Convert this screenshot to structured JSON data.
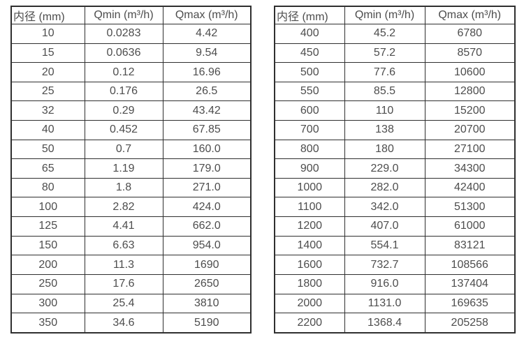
{
  "colors": {
    "background": "#ffffff",
    "border": "#2f2f2f",
    "text": "#4d4d4d"
  },
  "tables": {
    "left": {
      "headers": [
        "内径 (mm)",
        "Qmin (m³/h)",
        "Qmax (m³/h)"
      ],
      "rows": [
        [
          "10",
          "0.0283",
          "4.42"
        ],
        [
          "15",
          "0.0636",
          "9.54"
        ],
        [
          "20",
          "0.12",
          "16.96"
        ],
        [
          "25",
          "0.176",
          "26.5"
        ],
        [
          "32",
          "0.29",
          "43.42"
        ],
        [
          "40",
          "0.452",
          "67.85"
        ],
        [
          "50",
          "0.7",
          "160.0"
        ],
        [
          "65",
          "1.19",
          "179.0"
        ],
        [
          "80",
          "1.8",
          "271.0"
        ],
        [
          "100",
          "2.82",
          "424.0"
        ],
        [
          "125",
          "4.41",
          "662.0"
        ],
        [
          "150",
          "6.63",
          "954.0"
        ],
        [
          "200",
          "11.3",
          "1690"
        ],
        [
          "250",
          "17.6",
          "2650"
        ],
        [
          "300",
          "25.4",
          "3810"
        ],
        [
          "350",
          "34.6",
          "5190"
        ]
      ]
    },
    "right": {
      "headers": [
        "内径 (mm)",
        "Qmin (m³/h)",
        "Qmax (m³/h)"
      ],
      "rows": [
        [
          "400",
          "45.2",
          "6780"
        ],
        [
          "450",
          "57.2",
          "8570"
        ],
        [
          "500",
          "77.6",
          "10600"
        ],
        [
          "550",
          "85.5",
          "12800"
        ],
        [
          "600",
          "110",
          "15200"
        ],
        [
          "700",
          "138",
          "20700"
        ],
        [
          "800",
          "180",
          "27100"
        ],
        [
          "900",
          "229.0",
          "34300"
        ],
        [
          "1000",
          "282.0",
          "42400"
        ],
        [
          "1100",
          "342.0",
          "51300"
        ],
        [
          "1200",
          "407.0",
          "61000"
        ],
        [
          "1400",
          "554.1",
          "83121"
        ],
        [
          "1600",
          "732.7",
          "108566"
        ],
        [
          "1800",
          "916.0",
          "137404"
        ],
        [
          "2000",
          "1131.0",
          "169635"
        ],
        [
          "2200",
          "1368.4",
          "205258"
        ]
      ]
    }
  },
  "chart_data": [
    {
      "type": "table",
      "title": "",
      "columns": [
        "内径 (mm)",
        "Qmin (m³/h)",
        "Qmax (m³/h)"
      ],
      "rows": [
        [
          10,
          0.0283,
          4.42
        ],
        [
          15,
          0.0636,
          9.54
        ],
        [
          20,
          0.12,
          16.96
        ],
        [
          25,
          0.176,
          26.5
        ],
        [
          32,
          0.29,
          43.42
        ],
        [
          40,
          0.452,
          67.85
        ],
        [
          50,
          0.7,
          160.0
        ],
        [
          65,
          1.19,
          179.0
        ],
        [
          80,
          1.8,
          271.0
        ],
        [
          100,
          2.82,
          424.0
        ],
        [
          125,
          4.41,
          662.0
        ],
        [
          150,
          6.63,
          954.0
        ],
        [
          200,
          11.3,
          1690
        ],
        [
          250,
          17.6,
          2650
        ],
        [
          300,
          25.4,
          3810
        ],
        [
          350,
          34.6,
          5190
        ]
      ]
    },
    {
      "type": "table",
      "title": "",
      "columns": [
        "内径 (mm)",
        "Qmin (m³/h)",
        "Qmax (m³/h)"
      ],
      "rows": [
        [
          400,
          45.2,
          6780
        ],
        [
          450,
          57.2,
          8570
        ],
        [
          500,
          77.6,
          10600
        ],
        [
          550,
          85.5,
          12800
        ],
        [
          600,
          110,
          15200
        ],
        [
          700,
          138,
          20700
        ],
        [
          800,
          180,
          27100
        ],
        [
          900,
          229.0,
          34300
        ],
        [
          1000,
          282.0,
          42400
        ],
        [
          1100,
          342.0,
          51300
        ],
        [
          1200,
          407.0,
          61000
        ],
        [
          1400,
          554.1,
          83121
        ],
        [
          1600,
          732.7,
          108566
        ],
        [
          1800,
          916.0,
          137404
        ],
        [
          2000,
          1131.0,
          169635
        ],
        [
          2200,
          1368.4,
          205258
        ]
      ]
    }
  ]
}
